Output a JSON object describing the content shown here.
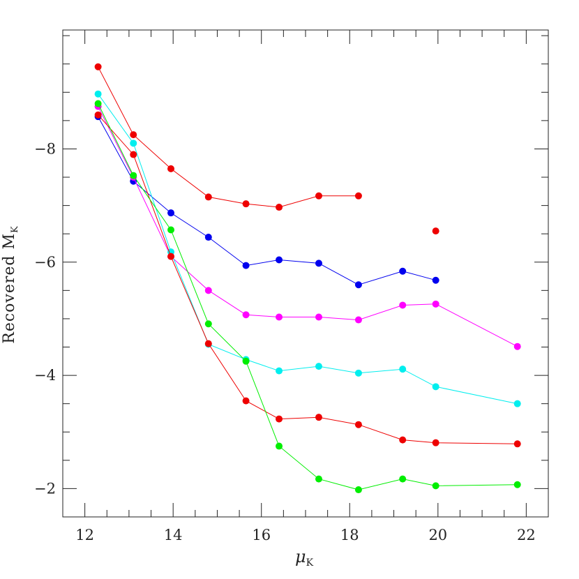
{
  "chart_data": {
    "type": "line",
    "title": "",
    "xlabel": "μ",
    "xlabel_sub": "K",
    "ylabel": "Recovered  M",
    "ylabel_sub": "K",
    "xlim": [
      11.5,
      22.5
    ],
    "ylim": [
      -1.5,
      -10.1
    ],
    "y_inverted": true,
    "x_ticks": [
      {
        "value": 12,
        "label": "12"
      },
      {
        "value": 14,
        "label": "14"
      },
      {
        "value": 16,
        "label": "16"
      },
      {
        "value": 18,
        "label": "18"
      },
      {
        "value": 20,
        "label": "20"
      },
      {
        "value": 22,
        "label": "22"
      }
    ],
    "y_ticks": [
      {
        "value": -2,
        "label": "−2"
      },
      {
        "value": -4,
        "label": "−4"
      },
      {
        "value": -6,
        "label": "−6"
      },
      {
        "value": -8,
        "label": "−8"
      }
    ],
    "x_minor_step": 0.5,
    "y_minor_step": 0.5,
    "grid": false,
    "legend": "none",
    "series": [
      {
        "color": "#ee0000",
        "points": [
          [
            12.3,
            -9.45
          ],
          [
            13.1,
            -8.25
          ],
          [
            13.95,
            -7.65
          ],
          [
            14.8,
            -7.15
          ],
          [
            15.65,
            -7.03
          ],
          [
            16.4,
            -6.97
          ],
          [
            17.3,
            -7.17
          ],
          [
            18.2,
            -7.17
          ]
        ]
      },
      {
        "color": "#ee0000",
        "points": [
          [
            19.95,
            -6.55
          ]
        ]
      },
      {
        "color": "#0000ee",
        "points": [
          [
            12.3,
            -8.57
          ],
          [
            13.1,
            -7.43
          ],
          [
            13.95,
            -6.87
          ],
          [
            14.8,
            -6.44
          ],
          [
            15.65,
            -5.94
          ],
          [
            16.4,
            -6.04
          ],
          [
            17.3,
            -5.98
          ],
          [
            18.2,
            -5.6
          ],
          [
            19.2,
            -5.84
          ],
          [
            19.95,
            -5.68
          ]
        ]
      },
      {
        "color": "#ff00ff",
        "points": [
          [
            12.3,
            -8.75
          ],
          [
            13.1,
            -7.5
          ],
          [
            13.95,
            -6.1
          ],
          [
            14.8,
            -5.5
          ],
          [
            15.65,
            -5.07
          ],
          [
            16.4,
            -5.03
          ],
          [
            17.3,
            -5.03
          ],
          [
            18.2,
            -4.98
          ],
          [
            19.2,
            -5.24
          ],
          [
            19.95,
            -5.26
          ],
          [
            21.8,
            -4.51
          ]
        ]
      },
      {
        "color": "#00eeee",
        "points": [
          [
            12.3,
            -8.97
          ],
          [
            13.1,
            -8.1
          ],
          [
            13.95,
            -6.18
          ],
          [
            14.8,
            -4.55
          ],
          [
            15.65,
            -4.28
          ],
          [
            16.4,
            -4.08
          ],
          [
            17.3,
            -4.16
          ],
          [
            18.2,
            -4.04
          ],
          [
            19.2,
            -4.11
          ],
          [
            19.95,
            -3.8
          ],
          [
            21.8,
            -3.5
          ]
        ]
      },
      {
        "color": "#ee0000",
        "points": [
          [
            12.3,
            -8.6
          ],
          [
            13.1,
            -7.9
          ],
          [
            13.95,
            -6.1
          ],
          [
            14.8,
            -4.56
          ],
          [
            15.65,
            -3.55
          ],
          [
            16.4,
            -3.23
          ],
          [
            17.3,
            -3.26
          ],
          [
            18.2,
            -3.13
          ],
          [
            19.2,
            -2.86
          ],
          [
            19.95,
            -2.81
          ],
          [
            21.8,
            -2.79
          ]
        ]
      },
      {
        "color": "#00ee00",
        "points": [
          [
            12.3,
            -8.8
          ],
          [
            13.1,
            -7.53
          ],
          [
            13.95,
            -6.57
          ],
          [
            14.8,
            -4.91
          ],
          [
            15.65,
            -4.25
          ],
          [
            16.4,
            -2.75
          ],
          [
            17.3,
            -2.17
          ],
          [
            18.2,
            -1.98
          ],
          [
            19.2,
            -2.17
          ],
          [
            19.95,
            -2.05
          ],
          [
            21.8,
            -2.07
          ]
        ]
      }
    ]
  }
}
